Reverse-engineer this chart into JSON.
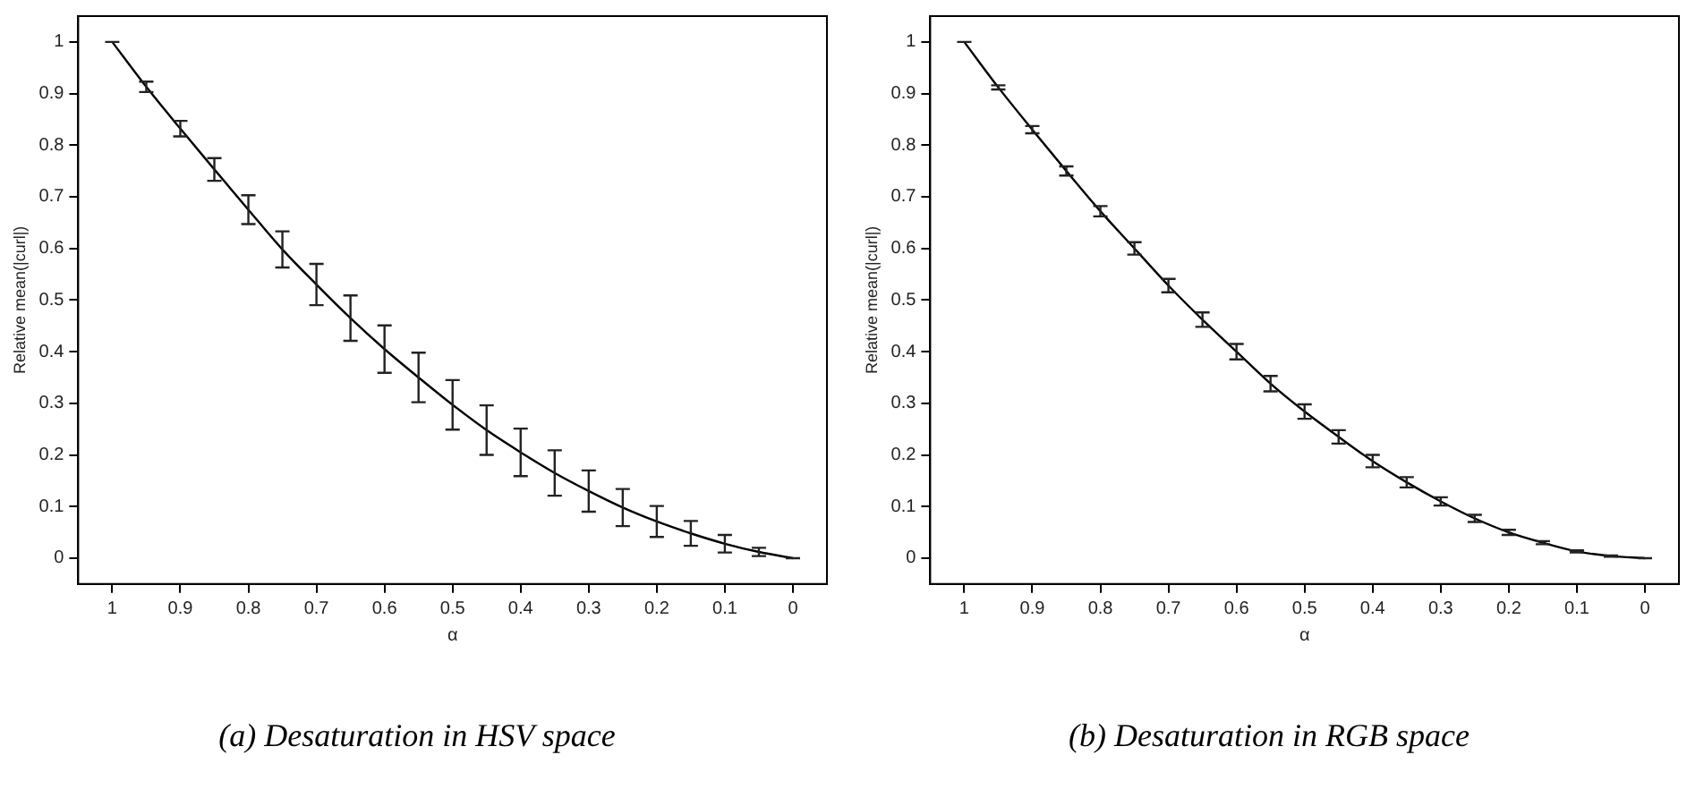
{
  "chart_data": [
    {
      "type": "line",
      "title": "(a) Desaturation in HSV space",
      "xlabel": "α",
      "ylabel": "Relative mean(|curl|)",
      "x": [
        1,
        0.95,
        0.9,
        0.85,
        0.8,
        0.75,
        0.7,
        0.65,
        0.6,
        0.55,
        0.5,
        0.45,
        0.4,
        0.35,
        0.3,
        0.25,
        0.2,
        0.15,
        0.1,
        0.05,
        0
      ],
      "series": [
        {
          "color": "#000000",
          "values": [
            1,
            0.913,
            0.832,
            0.753,
            0.675,
            0.598,
            0.53,
            0.465,
            0.405,
            0.35,
            0.297,
            0.248,
            0.205,
            0.165,
            0.13,
            0.098,
            0.071,
            0.048,
            0.028,
            0.012,
            0
          ],
          "errors": [
            0,
            0.01,
            0.015,
            0.022,
            0.028,
            0.035,
            0.04,
            0.044,
            0.046,
            0.048,
            0.048,
            0.048,
            0.046,
            0.044,
            0.04,
            0.036,
            0.03,
            0.024,
            0.017,
            0.008,
            0
          ]
        }
      ],
      "xlim": [
        1.05,
        -0.05
      ],
      "xticks": [
        1,
        0.9,
        0.8,
        0.7,
        0.6,
        0.5,
        0.4,
        0.3,
        0.2,
        0.1,
        0
      ],
      "ylim": [
        -0.05,
        1.05
      ],
      "yticks": [
        0,
        0.1,
        0.2,
        0.3,
        0.4,
        0.5,
        0.6,
        0.7,
        0.8,
        0.9,
        1
      ],
      "grid": false,
      "legend": false,
      "line_style": "solid"
    },
    {
      "type": "line",
      "title": "(b) Desaturation in RGB space",
      "xlabel": "α",
      "ylabel": "Relative mean(|curl|)",
      "x": [
        1,
        0.95,
        0.9,
        0.85,
        0.8,
        0.75,
        0.7,
        0.65,
        0.6,
        0.55,
        0.5,
        0.45,
        0.4,
        0.35,
        0.3,
        0.25,
        0.2,
        0.15,
        0.1,
        0.05,
        0
      ],
      "series": [
        {
          "color": "#000000",
          "values": [
            1,
            0.912,
            0.83,
            0.75,
            0.672,
            0.6,
            0.528,
            0.462,
            0.4,
            0.338,
            0.284,
            0.235,
            0.188,
            0.147,
            0.11,
            0.077,
            0.05,
            0.03,
            0.013,
            0.004,
            0
          ],
          "errors": [
            0,
            0.004,
            0.007,
            0.009,
            0.01,
            0.012,
            0.013,
            0.014,
            0.015,
            0.015,
            0.014,
            0.013,
            0.012,
            0.01,
            0.008,
            0.007,
            0.005,
            0.003,
            0.002,
            0.001,
            0
          ]
        }
      ],
      "xlim": [
        1.05,
        -0.05
      ],
      "xticks": [
        1,
        0.9,
        0.8,
        0.7,
        0.6,
        0.5,
        0.4,
        0.3,
        0.2,
        0.1,
        0
      ],
      "ylim": [
        -0.05,
        1.05
      ],
      "yticks": [
        0,
        0.1,
        0.2,
        0.3,
        0.4,
        0.5,
        0.6,
        0.7,
        0.8,
        0.9,
        1
      ],
      "grid": false,
      "legend": false,
      "line_style": "solid"
    }
  ]
}
